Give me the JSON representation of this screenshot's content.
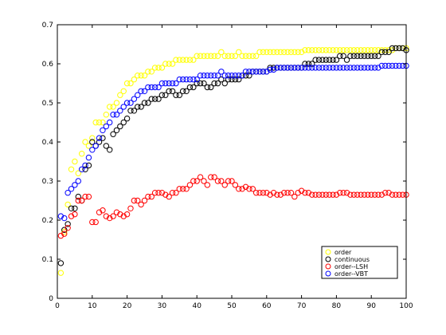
{
  "chart_data": {
    "type": "scatter",
    "xlim": [
      0,
      100
    ],
    "ylim": [
      0,
      0.7
    ],
    "xticks": [
      "0",
      "10",
      "20",
      "30",
      "40",
      "50",
      "60",
      "70",
      "80",
      "90",
      "100"
    ],
    "yticks": [
      "0",
      "0.1",
      "0.2",
      "0.3",
      "0.4",
      "0.5",
      "0.6",
      "0.7"
    ],
    "grid": false,
    "legend_position": "bottom-right",
    "marker": "open-circle",
    "series": [
      {
        "name": "order",
        "color": "#ffff00",
        "x": [
          1,
          2,
          3,
          4,
          5,
          6,
          7,
          8,
          9,
          10,
          11,
          12,
          13,
          14,
          15,
          16,
          17,
          18,
          19,
          20,
          21,
          22,
          23,
          24,
          25,
          26,
          27,
          28,
          29,
          30,
          31,
          32,
          33,
          34,
          35,
          36,
          37,
          38,
          39,
          40,
          41,
          42,
          43,
          44,
          45,
          46,
          47,
          48,
          49,
          50,
          51,
          52,
          53,
          54,
          55,
          56,
          57,
          58,
          59,
          60,
          61,
          62,
          63,
          64,
          65,
          66,
          67,
          68,
          69,
          70,
          71,
          72,
          73,
          74,
          75,
          76,
          77,
          78,
          79,
          80,
          81,
          82,
          83,
          84,
          85,
          86,
          87,
          88,
          89,
          90,
          91,
          92,
          93,
          94,
          95,
          96,
          97,
          98,
          99,
          100
        ],
        "y": [
          0.065,
          0.17,
          0.24,
          0.33,
          0.35,
          0.32,
          0.37,
          0.4,
          0.39,
          0.41,
          0.45,
          0.45,
          0.45,
          0.47,
          0.49,
          0.49,
          0.5,
          0.52,
          0.53,
          0.55,
          0.55,
          0.56,
          0.57,
          0.57,
          0.57,
          0.58,
          0.58,
          0.59,
          0.59,
          0.59,
          0.6,
          0.6,
          0.6,
          0.61,
          0.61,
          0.61,
          0.61,
          0.61,
          0.61,
          0.62,
          0.62,
          0.62,
          0.62,
          0.62,
          0.62,
          0.62,
          0.63,
          0.62,
          0.62,
          0.62,
          0.62,
          0.63,
          0.62,
          0.62,
          0.62,
          0.62,
          0.62,
          0.63,
          0.63,
          0.63,
          0.63,
          0.63,
          0.63,
          0.63,
          0.63,
          0.63,
          0.63,
          0.63,
          0.63,
          0.63,
          0.635,
          0.635,
          0.635,
          0.635,
          0.635,
          0.635,
          0.635,
          0.635,
          0.635,
          0.635,
          0.635,
          0.635,
          0.635,
          0.635,
          0.635,
          0.635,
          0.635,
          0.635,
          0.635,
          0.635,
          0.635,
          0.635,
          0.635,
          0.635,
          0.635,
          0.635,
          0.64,
          0.64,
          0.64,
          0.64
        ]
      },
      {
        "name": "continuous",
        "color": "#000000",
        "x": [
          1,
          2,
          3,
          4,
          5,
          6,
          7,
          8,
          9,
          10,
          11,
          12,
          13,
          14,
          15,
          16,
          17,
          18,
          19,
          20,
          21,
          22,
          23,
          24,
          25,
          26,
          27,
          28,
          29,
          30,
          31,
          32,
          33,
          34,
          35,
          36,
          37,
          38,
          39,
          40,
          41,
          42,
          43,
          44,
          45,
          46,
          47,
          48,
          49,
          50,
          51,
          52,
          53,
          54,
          55,
          56,
          57,
          58,
          59,
          60,
          61,
          62,
          63,
          64,
          65,
          66,
          67,
          68,
          69,
          70,
          71,
          72,
          73,
          74,
          75,
          76,
          77,
          78,
          79,
          80,
          81,
          82,
          83,
          84,
          85,
          86,
          87,
          88,
          89,
          90,
          91,
          92,
          93,
          94,
          95,
          96,
          97,
          98,
          99,
          100
        ],
        "y": [
          0.09,
          0.175,
          0.19,
          0.23,
          0.23,
          0.26,
          0.25,
          0.33,
          0.34,
          0.4,
          0.39,
          0.4,
          0.41,
          0.39,
          0.38,
          0.42,
          0.43,
          0.44,
          0.45,
          0.46,
          0.48,
          0.48,
          0.49,
          0.49,
          0.5,
          0.5,
          0.51,
          0.51,
          0.51,
          0.52,
          0.52,
          0.53,
          0.53,
          0.52,
          0.52,
          0.53,
          0.53,
          0.54,
          0.54,
          0.55,
          0.55,
          0.55,
          0.54,
          0.54,
          0.55,
          0.55,
          0.56,
          0.55,
          0.56,
          0.56,
          0.56,
          0.56,
          0.57,
          0.57,
          0.57,
          0.58,
          0.58,
          0.58,
          0.58,
          0.58,
          0.59,
          0.59,
          0.59,
          0.59,
          0.59,
          0.59,
          0.59,
          0.59,
          0.59,
          0.59,
          0.6,
          0.6,
          0.6,
          0.61,
          0.61,
          0.61,
          0.61,
          0.61,
          0.61,
          0.61,
          0.62,
          0.62,
          0.61,
          0.62,
          0.62,
          0.62,
          0.62,
          0.62,
          0.62,
          0.62,
          0.62,
          0.62,
          0.63,
          0.63,
          0.63,
          0.64,
          0.64,
          0.64,
          0.64,
          0.635
        ]
      },
      {
        "name": "order--LSH",
        "color": "#ff0000",
        "x": [
          1,
          2,
          3,
          4,
          5,
          6,
          7,
          8,
          9,
          10,
          11,
          12,
          13,
          14,
          15,
          16,
          17,
          18,
          19,
          20,
          21,
          22,
          23,
          24,
          25,
          26,
          27,
          28,
          29,
          30,
          31,
          32,
          33,
          34,
          35,
          36,
          37,
          38,
          39,
          40,
          41,
          42,
          43,
          44,
          45,
          46,
          47,
          48,
          49,
          50,
          51,
          52,
          53,
          54,
          55,
          56,
          57,
          58,
          59,
          60,
          61,
          62,
          63,
          64,
          65,
          66,
          67,
          68,
          69,
          70,
          71,
          72,
          73,
          74,
          75,
          76,
          77,
          78,
          79,
          80,
          81,
          82,
          83,
          84,
          85,
          86,
          87,
          88,
          89,
          90,
          91,
          92,
          93,
          94,
          95,
          96,
          97,
          98,
          99,
          100
        ],
        "y": [
          0.16,
          0.165,
          0.18,
          0.21,
          0.215,
          0.25,
          0.25,
          0.26,
          0.26,
          0.195,
          0.195,
          0.22,
          0.225,
          0.21,
          0.205,
          0.21,
          0.22,
          0.215,
          0.21,
          0.215,
          0.23,
          0.25,
          0.25,
          0.24,
          0.25,
          0.26,
          0.26,
          0.27,
          0.27,
          0.27,
          0.265,
          0.26,
          0.27,
          0.27,
          0.28,
          0.28,
          0.28,
          0.29,
          0.3,
          0.3,
          0.31,
          0.3,
          0.29,
          0.31,
          0.31,
          0.3,
          0.3,
          0.29,
          0.3,
          0.3,
          0.29,
          0.28,
          0.28,
          0.285,
          0.28,
          0.28,
          0.27,
          0.27,
          0.27,
          0.27,
          0.265,
          0.27,
          0.265,
          0.265,
          0.27,
          0.27,
          0.27,
          0.26,
          0.27,
          0.275,
          0.27,
          0.27,
          0.265,
          0.265,
          0.265,
          0.265,
          0.265,
          0.265,
          0.265,
          0.265,
          0.27,
          0.27,
          0.27,
          0.265,
          0.265,
          0.265,
          0.265,
          0.265,
          0.265,
          0.265,
          0.265,
          0.265,
          0.265,
          0.27,
          0.27,
          0.265,
          0.265,
          0.265,
          0.265,
          0.265
        ]
      },
      {
        "name": "order--VBT",
        "color": "#0000ff",
        "x": [
          1,
          2,
          3,
          4,
          5,
          6,
          7,
          8,
          9,
          10,
          11,
          12,
          13,
          14,
          15,
          16,
          17,
          18,
          19,
          20,
          21,
          22,
          23,
          24,
          25,
          26,
          27,
          28,
          29,
          30,
          31,
          32,
          33,
          34,
          35,
          36,
          37,
          38,
          39,
          40,
          41,
          42,
          43,
          44,
          45,
          46,
          47,
          48,
          49,
          50,
          51,
          52,
          53,
          54,
          55,
          56,
          57,
          58,
          59,
          60,
          61,
          62,
          63,
          64,
          65,
          66,
          67,
          68,
          69,
          70,
          71,
          72,
          73,
          74,
          75,
          76,
          77,
          78,
          79,
          80,
          81,
          82,
          83,
          84,
          85,
          86,
          87,
          88,
          89,
          90,
          91,
          92,
          93,
          94,
          95,
          96,
          97,
          98,
          99,
          100
        ],
        "y": [
          0.21,
          0.205,
          0.27,
          0.28,
          0.29,
          0.3,
          0.33,
          0.34,
          0.36,
          0.38,
          0.39,
          0.41,
          0.43,
          0.44,
          0.45,
          0.47,
          0.47,
          0.48,
          0.49,
          0.5,
          0.5,
          0.51,
          0.52,
          0.53,
          0.53,
          0.54,
          0.54,
          0.54,
          0.54,
          0.55,
          0.55,
          0.55,
          0.55,
          0.55,
          0.56,
          0.56,
          0.56,
          0.56,
          0.56,
          0.56,
          0.57,
          0.57,
          0.57,
          0.57,
          0.57,
          0.57,
          0.58,
          0.57,
          0.57,
          0.57,
          0.57,
          0.57,
          0.57,
          0.58,
          0.58,
          0.58,
          0.58,
          0.58,
          0.58,
          0.58,
          0.585,
          0.585,
          0.59,
          0.59,
          0.59,
          0.59,
          0.59,
          0.59,
          0.59,
          0.59,
          0.59,
          0.59,
          0.59,
          0.59,
          0.59,
          0.59,
          0.59,
          0.59,
          0.59,
          0.59,
          0.59,
          0.59,
          0.59,
          0.59,
          0.59,
          0.59,
          0.59,
          0.59,
          0.59,
          0.59,
          0.59,
          0.59,
          0.595,
          0.595,
          0.595,
          0.595,
          0.595,
          0.595,
          0.595,
          0.595
        ]
      }
    ]
  }
}
